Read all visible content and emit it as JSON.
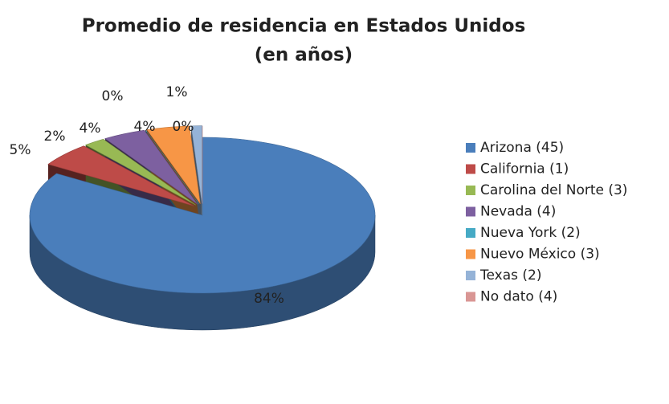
{
  "chart_data": {
    "type": "pie",
    "title": "Promedio de residencia en Estados Unidos",
    "subtitle": "(en años)",
    "categories": [
      "Arizona (45)",
      "California (1)",
      "Carolina del Norte (3)",
      "Nevada (4)",
      "Nueva York (2)",
      "Nuevo México (3)",
      "Texas (2)",
      "No dato (4)"
    ],
    "values": [
      84,
      5,
      2,
      4,
      0,
      4,
      1,
      0
    ],
    "value_labels": [
      "84%",
      "5%",
      "2%",
      "4%",
      "0%",
      "4%",
      "1%",
      "0%"
    ],
    "colors": [
      "#4a7ebb",
      "#be4b48",
      "#98b954",
      "#7d60a0",
      "#46aac5",
      "#f79646",
      "#95b3d7",
      "#d99694"
    ],
    "legend": "right"
  }
}
